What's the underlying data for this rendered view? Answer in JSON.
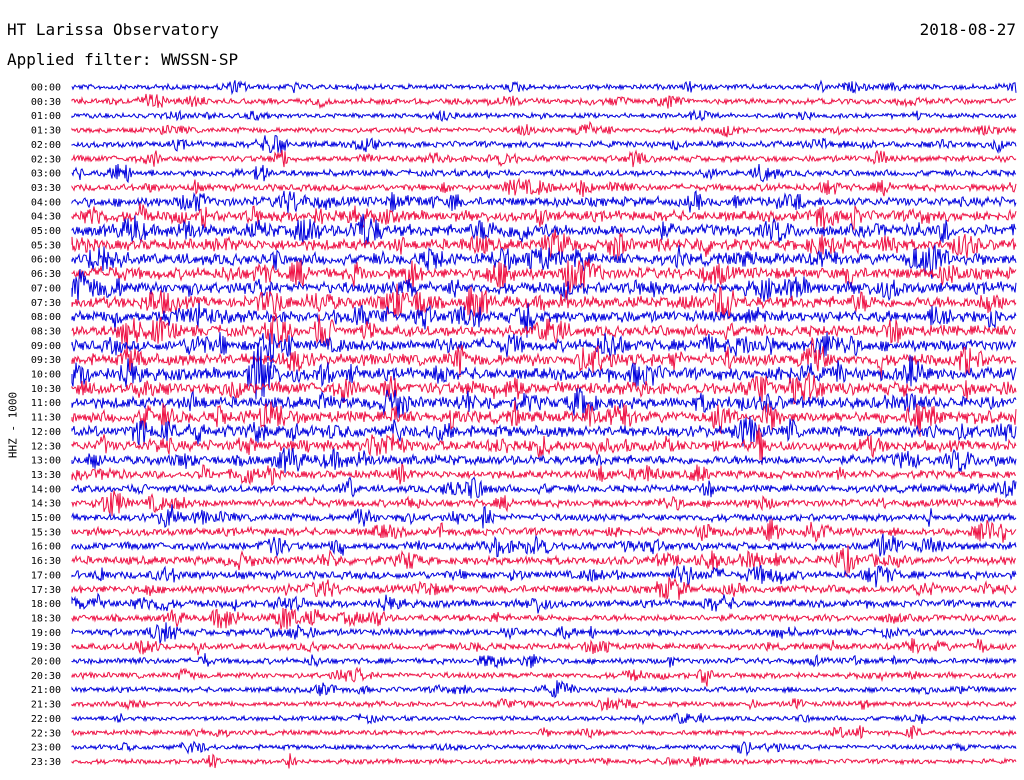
{
  "header": {
    "station": "HT Larissa Observatory",
    "date": "2018-08-27",
    "filter_label": "Applied filter: WWSSN-SP"
  },
  "chart_data": {
    "type": "line",
    "title": "HT Larissa Observatory",
    "ylabel": "HHZ - 1000",
    "row_labels": [
      "00:00",
      "00:30",
      "01:00",
      "01:30",
      "02:00",
      "02:30",
      "03:00",
      "03:30",
      "04:00",
      "04:30",
      "05:00",
      "05:30",
      "06:00",
      "06:30",
      "07:00",
      "07:30",
      "08:00",
      "08:30",
      "09:00",
      "09:30",
      "10:00",
      "10:30",
      "11:00",
      "11:30",
      "12:00",
      "12:30",
      "13:00",
      "13:30",
      "14:00",
      "14:30",
      "15:00",
      "15:30",
      "16:00",
      "16:30",
      "17:00",
      "17:30",
      "18:00",
      "18:30",
      "19:00",
      "19:30",
      "20:00",
      "20:30",
      "21:00",
      "21:30",
      "22:00",
      "22:30",
      "23:00",
      "23:30"
    ],
    "series_colors": [
      "#0000dd",
      "#ee1144"
    ],
    "relative_activity": [
      0.35,
      0.4,
      0.3,
      0.35,
      0.45,
      0.45,
      0.45,
      0.5,
      0.75,
      0.85,
      0.95,
      0.9,
      0.95,
      0.95,
      0.95,
      0.95,
      0.95,
      0.9,
      0.95,
      0.95,
      1.0,
      1.0,
      0.95,
      0.95,
      0.9,
      0.85,
      0.75,
      0.6,
      0.55,
      0.55,
      0.55,
      0.6,
      0.6,
      0.65,
      0.6,
      0.6,
      0.55,
      0.5,
      0.5,
      0.45,
      0.4,
      0.4,
      0.35,
      0.35,
      0.3,
      0.3,
      0.3,
      0.3
    ]
  }
}
